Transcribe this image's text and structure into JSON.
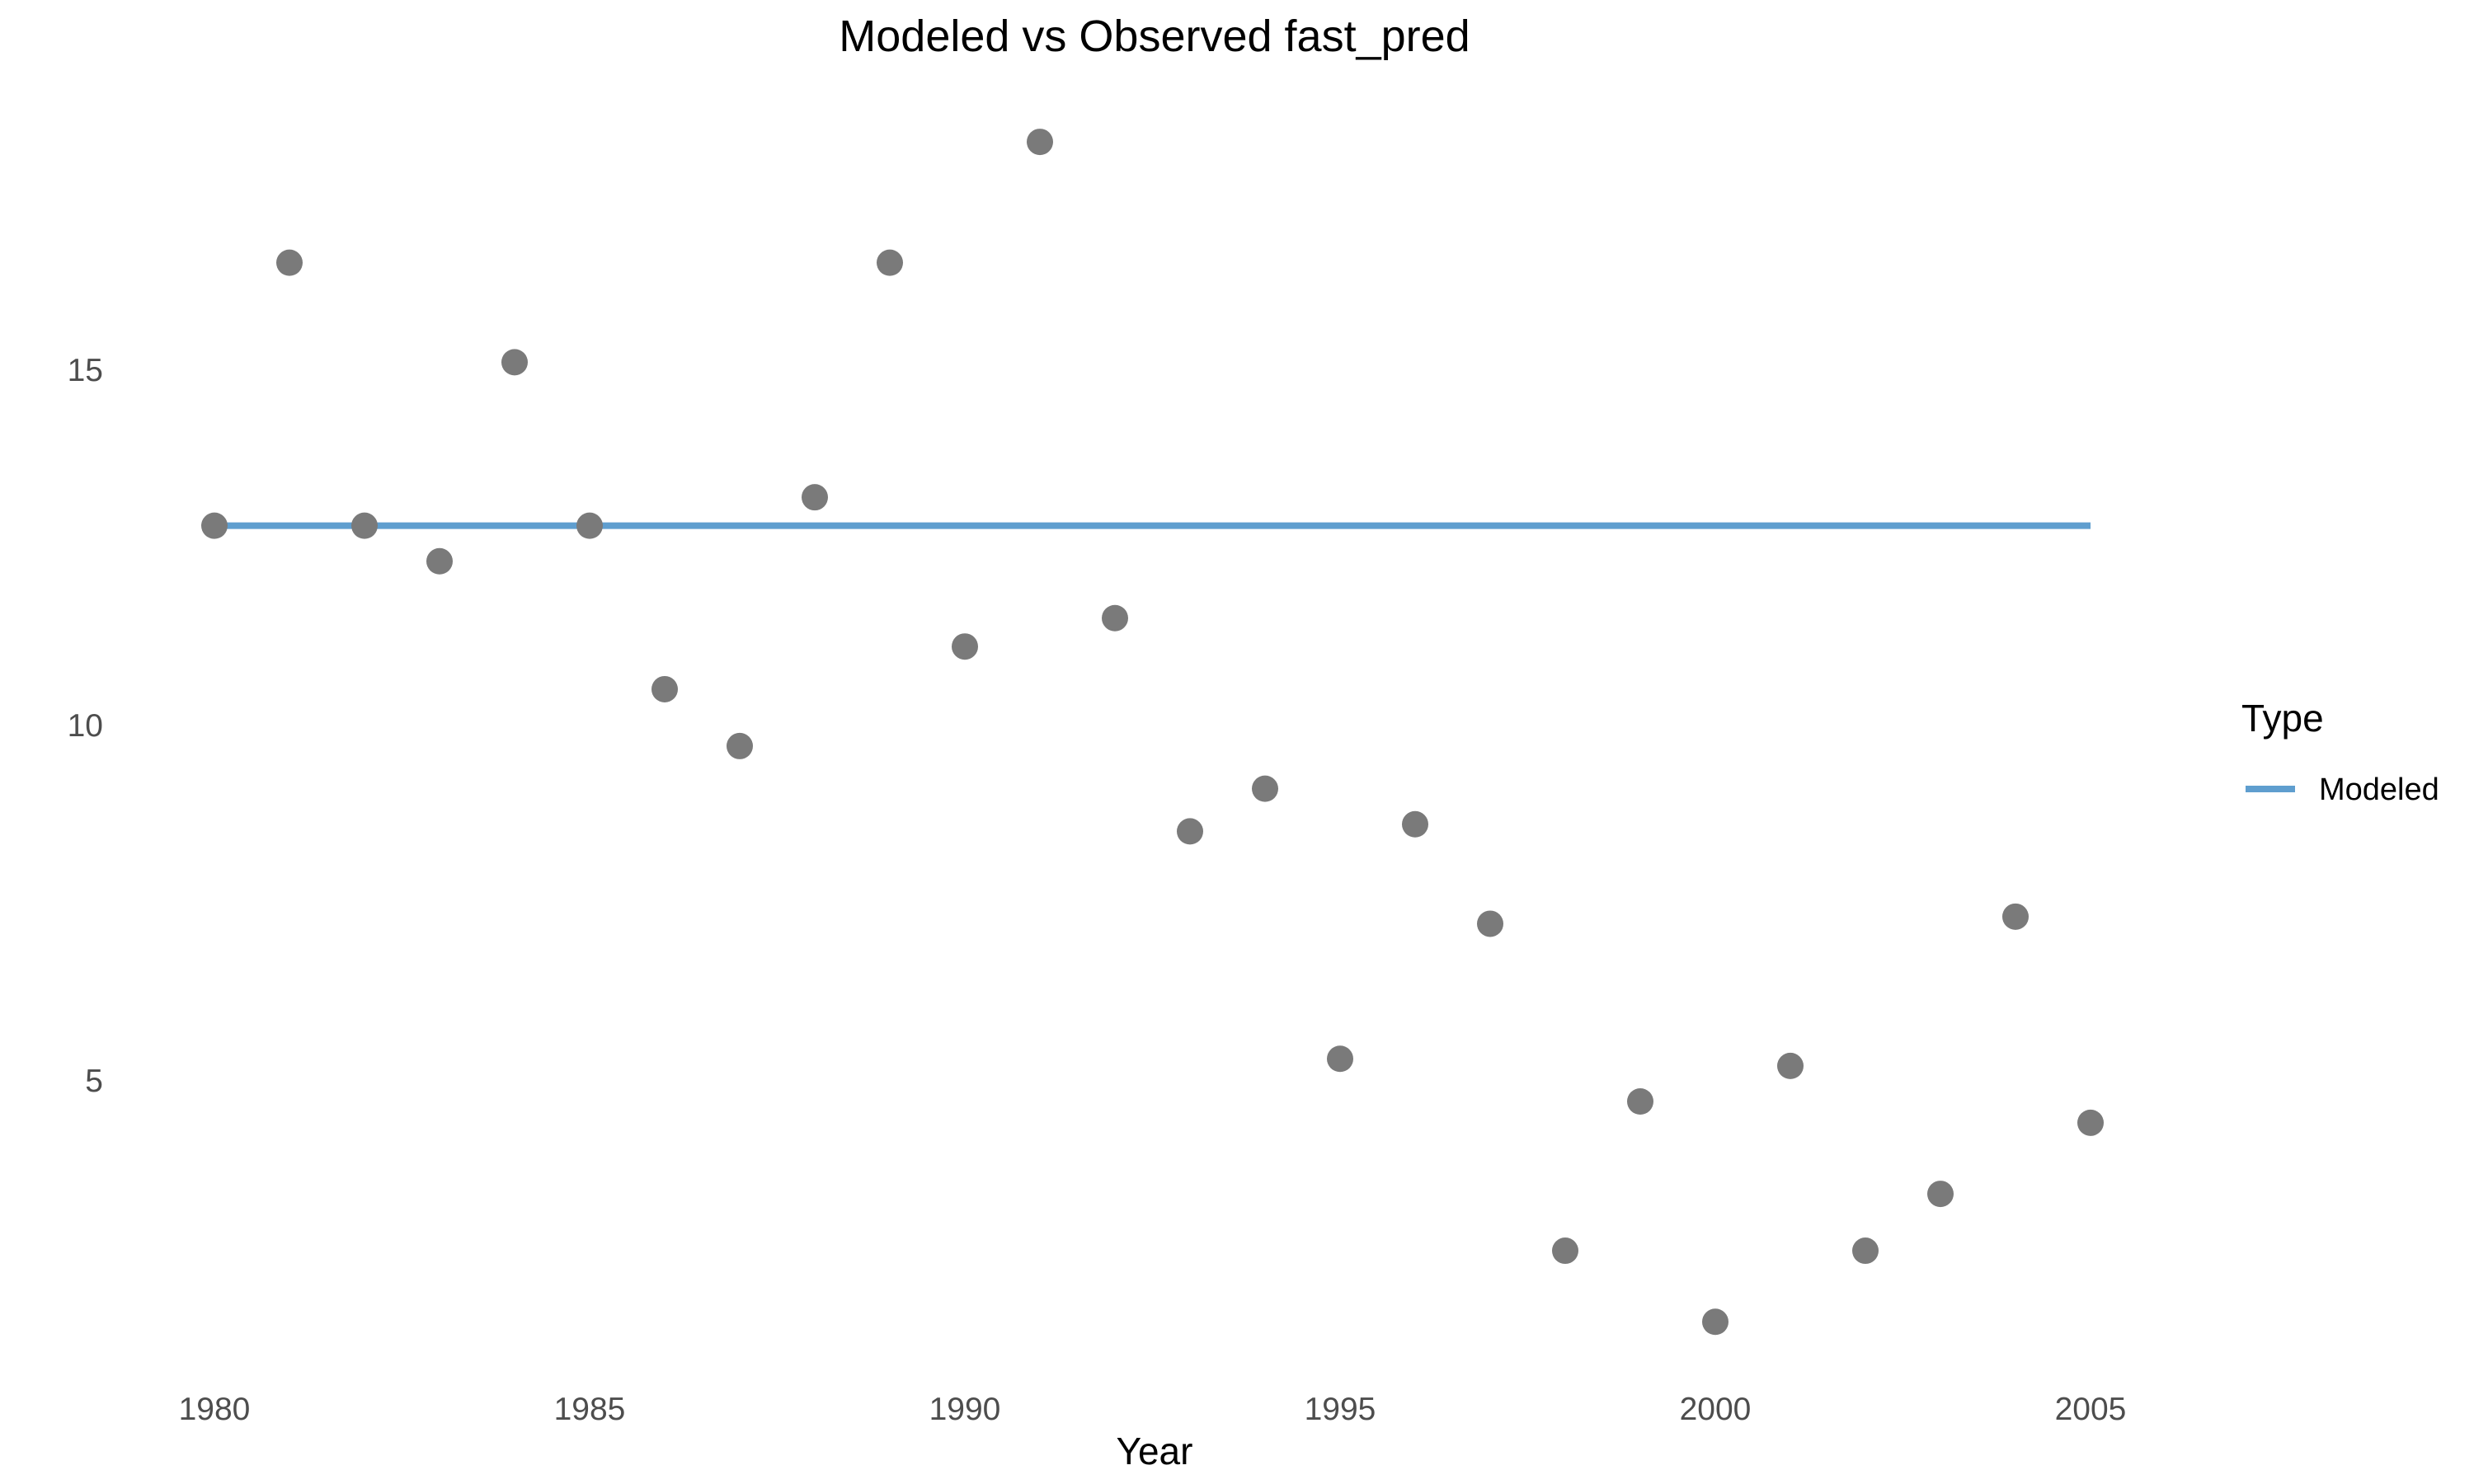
{
  "chart_data": {
    "type": "scatter",
    "title": "Modeled vs Observed fast_pred",
    "xlabel": "Year",
    "ylabel": "",
    "xlim": [
      1979,
      2008
    ],
    "ylim": [
      1.0,
      19.5
    ],
    "x_ticks": [
      1980,
      1985,
      1990,
      1995,
      2000,
      2005
    ],
    "y_ticks": [
      5,
      10,
      15
    ],
    "grid": false,
    "legend": {
      "title": "Type",
      "placement": "right",
      "entries": [
        {
          "label": "Modeled",
          "color": "#5f9ecf",
          "kind": "line"
        }
      ]
    },
    "series": [
      {
        "name": "Modeled",
        "kind": "line",
        "color": "#5f9ecf",
        "x": [
          1980,
          2005
        ],
        "y": [
          12.8,
          12.8
        ]
      },
      {
        "kind": "points",
        "color": "#7a7a7a",
        "x": [
          1980,
          1981,
          1982,
          1983,
          1984,
          1985,
          1986,
          1987,
          1988,
          1989,
          1990,
          1991,
          1992,
          1993,
          1994,
          1995,
          1996,
          1997,
          1998,
          1999,
          2000,
          2001,
          2002,
          2003,
          2004,
          2005
        ],
        "y": [
          12.8,
          16.5,
          12.8,
          12.3,
          15.1,
          12.8,
          10.5,
          9.7,
          13.2,
          16.5,
          11.1,
          18.2,
          11.5,
          8.5,
          9.1,
          5.3,
          8.6,
          7.2,
          2.6,
          4.7,
          1.6,
          5.2,
          2.6,
          3.4,
          7.3,
          4.4
        ]
      }
    ]
  }
}
